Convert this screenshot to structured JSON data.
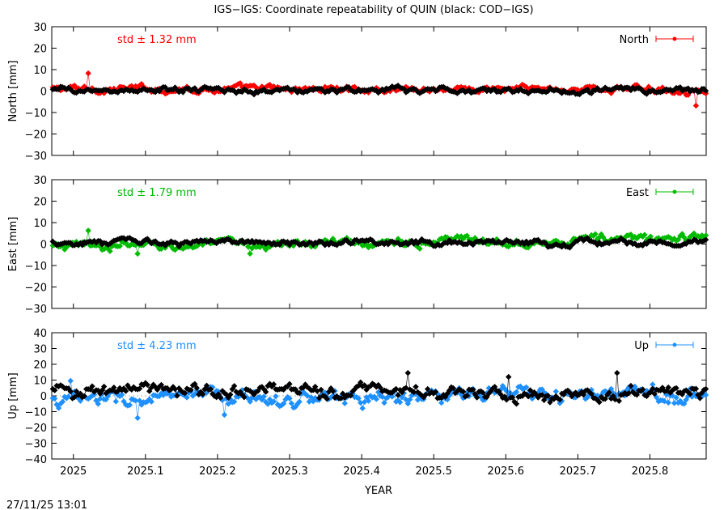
{
  "title": "IGS−IGS: Coordinate repeatability of QUIN (black: COD−IGS)",
  "timestamp": "27/11/25 13:01",
  "chart_data": [
    {
      "type": "scatter",
      "component": "North",
      "ylabel": "North [mm]",
      "ylim": [
        -30,
        30
      ],
      "yticks": [
        "30",
        "20",
        "10",
        "0",
        "−10",
        "−20",
        "−30"
      ],
      "std_label": "std ± 1.32 mm",
      "legend": "North",
      "legend_position": "top-right",
      "color": "#ff0000",
      "series": [
        {
          "name": "North",
          "color": "#ff0000",
          "amplitude": 1.0,
          "offset": 1.0,
          "trend": 0.0,
          "spikes": [
            [
              2025.02,
              8.3
            ],
            [
              2025.865,
              -6.8
            ]
          ]
        },
        {
          "name": "COD−IGS",
          "color": "#000000",
          "amplitude": 0.9,
          "offset": 0.3,
          "trend": 0.0,
          "spikes": []
        }
      ]
    },
    {
      "type": "scatter",
      "component": "East",
      "ylabel": "East [mm]",
      "ylim": [
        -30,
        30
      ],
      "yticks": [
        "30",
        "20",
        "10",
        "0",
        "−10",
        "−20",
        "−30"
      ],
      "std_label": "std ± 1.79 mm",
      "legend": "East",
      "legend_position": "top-right",
      "color": "#00bb00",
      "series": [
        {
          "name": "East",
          "color": "#00bb00",
          "amplitude": 1.3,
          "offset": -1.5,
          "trend": 4.5,
          "spikes": [
            [
              2025.02,
              6.3
            ],
            [
              2025.245,
              -4.5
            ],
            [
              2025.09,
              -4.5
            ]
          ]
        },
        {
          "name": "COD−IGS",
          "color": "#000000",
          "amplitude": 0.9,
          "offset": 0.8,
          "trend": 0.0,
          "spikes": []
        }
      ]
    },
    {
      "type": "scatter",
      "component": "Up",
      "ylabel": "Up [mm]",
      "ylim": [
        -40,
        40
      ],
      "yticks": [
        "40",
        "30",
        "20",
        "10",
        "0",
        "−10",
        "−20",
        "−30",
        "−40"
      ],
      "std_label": "std ± 4.23 mm",
      "legend": "Up",
      "legend_position": "top-right",
      "color": "#1e90ff",
      "series": [
        {
          "name": "Up",
          "color": "#1e90ff",
          "amplitude": 3.2,
          "offset": -3.0,
          "trend": 4.0,
          "spikes": [
            [
              2025.09,
              -14.0
            ],
            [
              2025.21,
              -12.0
            ],
            [
              2024.995,
              9.5
            ]
          ]
        },
        {
          "name": "COD−IGS",
          "color": "#000000",
          "amplitude": 2.8,
          "offset": 3.5,
          "trend": -1.5,
          "spikes": [
            [
              2025.465,
              14.5
            ],
            [
              2025.755,
              14.5
            ],
            [
              2025.605,
              12.0
            ]
          ]
        }
      ]
    }
  ],
  "x_axis": {
    "label": "YEAR",
    "xlim": [
      2024.97,
      2025.878
    ],
    "ticks": [
      2025.0,
      2025.1,
      2025.2,
      2025.3,
      2025.4,
      2025.5,
      2025.6,
      2025.7,
      2025.8
    ],
    "tick_labels": [
      "2025",
      "2025.1",
      "2025.2",
      "2025.3",
      "2025.4",
      "2025.5",
      "2025.6",
      "2025.7",
      "2025.8"
    ]
  }
}
